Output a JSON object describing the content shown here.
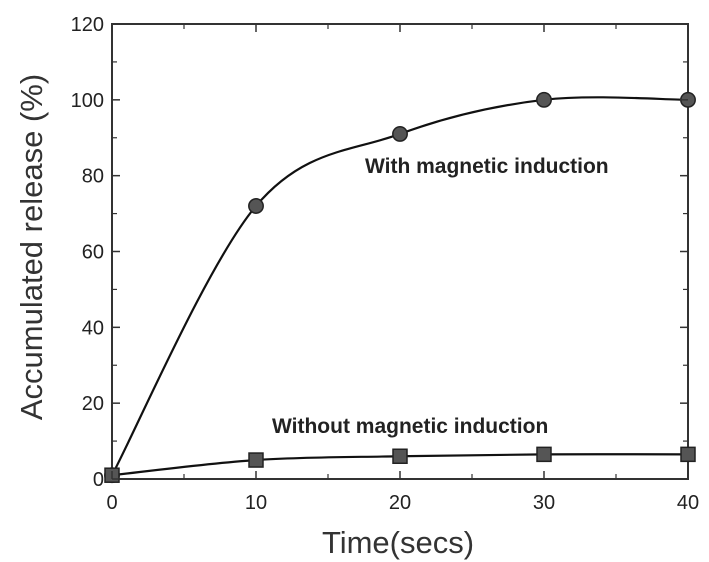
{
  "chart_data": {
    "type": "line",
    "xlabel": "Time(secs)",
    "ylabel": "Accumulated release (%)",
    "xlim": [
      0,
      40
    ],
    "ylim": [
      0,
      120
    ],
    "xticks": [
      0,
      10,
      20,
      30,
      40
    ],
    "yticks": [
      0,
      20,
      40,
      60,
      80,
      100,
      120
    ],
    "x_tick_labels": [
      "0",
      "10",
      "20",
      "30",
      "40"
    ],
    "y_tick_labels": [
      "0",
      "20",
      "40",
      "60",
      "80",
      "100",
      "120"
    ],
    "grid": false,
    "legend": "none",
    "series": [
      {
        "name": "With magnetic induction",
        "marker": "circle",
        "x": [
          0,
          10,
          20,
          30,
          40
        ],
        "y": [
          1,
          72,
          91,
          100,
          100
        ]
      },
      {
        "name": "Without magnetic induction",
        "marker": "square",
        "x": [
          0,
          10,
          20,
          30,
          40
        ],
        "y": [
          1,
          5,
          6,
          6.5,
          6.5
        ]
      }
    ],
    "colors": {
      "line": "#111111",
      "marker_fill": "#555555",
      "marker_edge": "#222222",
      "axis": "#333333"
    }
  }
}
